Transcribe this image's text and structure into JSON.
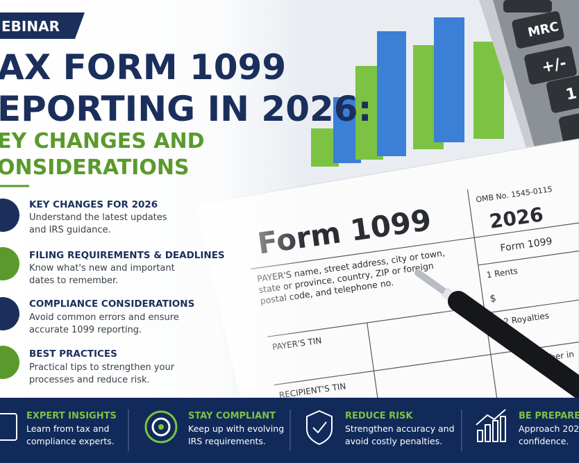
{
  "badge": "EBINAR",
  "title": [
    "AX FORM 1099",
    "EPORTING IN 2026:"
  ],
  "subtitle": [
    "EY CHANGES AND",
    "ONSIDERATIONS"
  ],
  "items": [
    {
      "title": "KEY CHANGES FOR 2026",
      "description": [
        "Understand the latest updates",
        "and IRS guidance."
      ]
    },
    {
      "title": "FILING REQUIREMENTS & DEADLINES",
      "description": [
        "Know what's new and important",
        "dates to remember."
      ]
    },
    {
      "title": "COMPLIANCE CONSIDERATIONS",
      "description": [
        "Avoid common errors and ensure",
        "accurate 1099 reporting."
      ]
    },
    {
      "title": "BEST PRACTICES",
      "description": [
        "Practical tips to strengthen your",
        "processes and reduce risk."
      ]
    }
  ],
  "features": [
    {
      "title": "EXPERT INSIGHTS",
      "description": [
        "Learn from tax and",
        "compliance experts."
      ]
    },
    {
      "title": "STAY COMPLIANT",
      "description": [
        "Keep up with evolving",
        "IRS requirements."
      ]
    },
    {
      "title": "REDUCE RISK",
      "description": [
        "Strengthen accuracy and",
        "avoid costly penalties."
      ]
    },
    {
      "title": "BE PREPARED",
      "description": [
        "Approach 202",
        "confidence."
      ]
    }
  ],
  "form": {
    "heading": "Form 1099",
    "omb": "OMB No. 1545-0115",
    "year": "2026",
    "form_label": "Form 1099",
    "payer": [
      "PAYER'S name, street address, city or town,",
      "state or province, country, ZIP or foreign",
      "postal code, and telephone no."
    ],
    "rents": "1 Rents",
    "dollar": "$",
    "royalties": "2 Royalties",
    "payer_tin": "PAYER'S TIN",
    "recipient_tin": "RECIPIENT'S TIN",
    "other": "Other in"
  },
  "calculator": [
    "MRC",
    "+/-",
    "1"
  ]
}
